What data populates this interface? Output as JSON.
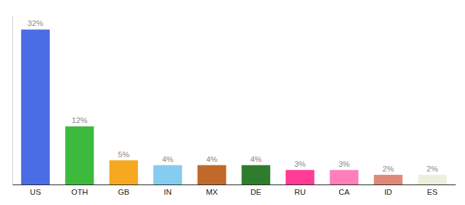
{
  "chart_data": {
    "type": "bar",
    "categories": [
      "US",
      "OTH",
      "GB",
      "IN",
      "MX",
      "DE",
      "RU",
      "CA",
      "ID",
      "ES"
    ],
    "values": [
      32,
      12,
      5,
      4,
      4,
      4,
      3,
      3,
      2,
      2
    ],
    "value_labels": [
      "32%",
      "12%",
      "5%",
      "4%",
      "4%",
      "4%",
      "3%",
      "3%",
      "2%",
      "2%"
    ],
    "colors": [
      "#4a6de5",
      "#3dba3d",
      "#f5a820",
      "#85ccee",
      "#c0692a",
      "#2e7d2e",
      "#ff3d96",
      "#ff80b8",
      "#e08878",
      "#eeeedd"
    ],
    "ylim": [
      0,
      35
    ],
    "data_labels": true,
    "tick_labels": "x",
    "grid": false
  }
}
